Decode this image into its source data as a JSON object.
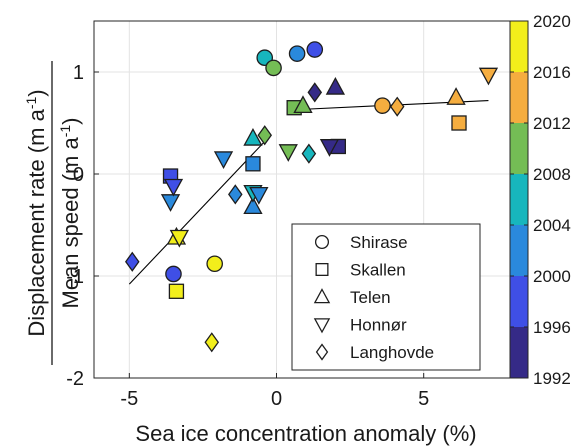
{
  "chart_data": {
    "type": "scatter",
    "xlabel": "Sea ice concentration anomaly (%)",
    "ylabel_top": "Displacement rate (m a-1)",
    "ylabel_bottom": "Mean speed (m a-1)",
    "ylabel_unit_base": "m a",
    "ylabel_unit_exp": "-1",
    "xlim": [
      -6.2,
      8.0
    ],
    "ylim": [
      -2,
      1.5
    ],
    "xticks": [
      -5,
      0,
      5
    ],
    "yticks": [
      -2,
      -1,
      0,
      1
    ],
    "grid": true,
    "legend_position": "bottom-right",
    "colorbar": {
      "ticks": [
        1992,
        1996,
        2000,
        2004,
        2008,
        2012,
        2016,
        2020
      ],
      "bands": [
        {
          "from": 1992,
          "to": 1996,
          "color": "#352a87"
        },
        {
          "from": 1996,
          "to": 2000,
          "color": "#3f4fe6"
        },
        {
          "from": 2000,
          "to": 2004,
          "color": "#2a89dc"
        },
        {
          "from": 2004,
          "to": 2008,
          "color": "#17b6bd"
        },
        {
          "from": 2008,
          "to": 2012,
          "color": "#74bd55"
        },
        {
          "from": 2012,
          "to": 2016,
          "color": "#f5ad3f"
        },
        {
          "from": 2016,
          "to": 2020,
          "color": "#f2ee1b"
        }
      ]
    },
    "fit_lines": [
      {
        "x": [
          -5.0,
          -0.2
        ],
        "y": [
          -1.08,
          0.38
        ]
      },
      {
        "x": [
          0.6,
          7.2
        ],
        "y": [
          0.63,
          0.72
        ]
      }
    ],
    "series": [
      {
        "name": "Shirase",
        "marker": "circle",
        "points": [
          {
            "x": -3.5,
            "y": -0.98,
            "color": "#3f4fe6"
          },
          {
            "x": -2.1,
            "y": -0.88,
            "color": "#f2ee1b"
          },
          {
            "x": -0.4,
            "y": 1.14,
            "color": "#17b6bd"
          },
          {
            "x": -0.1,
            "y": 1.04,
            "color": "#74bd55"
          },
          {
            "x": 0.7,
            "y": 1.18,
            "color": "#2a89dc"
          },
          {
            "x": 1.3,
            "y": 1.22,
            "color": "#3f4fe6"
          },
          {
            "x": 3.6,
            "y": 0.67,
            "color": "#f5ad3f"
          }
        ]
      },
      {
        "name": "Skallen",
        "marker": "square",
        "points": [
          {
            "x": -3.6,
            "y": -0.02,
            "color": "#3f4fe6"
          },
          {
            "x": -3.4,
            "y": -1.15,
            "color": "#f2ee1b"
          },
          {
            "x": -0.8,
            "y": 0.1,
            "color": "#2a89dc"
          },
          {
            "x": 0.6,
            "y": 0.65,
            "color": "#74bd55"
          },
          {
            "x": 2.1,
            "y": 0.27,
            "color": "#352a87"
          },
          {
            "x": 6.2,
            "y": 0.5,
            "color": "#f5ad3f"
          }
        ]
      },
      {
        "name": "Telen",
        "marker": "triangle-up",
        "points": [
          {
            "x": -3.4,
            "y": -0.62,
            "color": "#f2ee1b"
          },
          {
            "x": -0.8,
            "y": -0.32,
            "color": "#2a89dc"
          },
          {
            "x": -0.8,
            "y": 0.35,
            "color": "#17b6bd"
          },
          {
            "x": 0.9,
            "y": 0.67,
            "color": "#74bd55"
          },
          {
            "x": 2.0,
            "y": 0.85,
            "color": "#352a87"
          },
          {
            "x": 6.1,
            "y": 0.75,
            "color": "#f5ad3f"
          }
        ]
      },
      {
        "name": "Honnør",
        "marker": "triangle-down",
        "points": [
          {
            "x": -3.6,
            "y": -0.27,
            "color": "#2a89dc"
          },
          {
            "x": -3.5,
            "y": -0.12,
            "color": "#3f4fe6"
          },
          {
            "x": -3.3,
            "y": -0.62,
            "color": "#f2ee1b"
          },
          {
            "x": -1.8,
            "y": 0.15,
            "color": "#2a89dc"
          },
          {
            "x": -0.8,
            "y": -0.18,
            "color": "#17b6bd"
          },
          {
            "x": -0.6,
            "y": -0.2,
            "color": "#2a89dc"
          },
          {
            "x": 0.4,
            "y": 0.22,
            "color": "#74bd55"
          },
          {
            "x": 1.8,
            "y": 0.27,
            "color": "#352a87"
          },
          {
            "x": 7.2,
            "y": 0.97,
            "color": "#f5ad3f"
          }
        ]
      },
      {
        "name": "Langhovde",
        "marker": "diamond",
        "points": [
          {
            "x": -4.9,
            "y": -0.86,
            "color": "#3f4fe6"
          },
          {
            "x": -2.2,
            "y": -1.65,
            "color": "#f2ee1b"
          },
          {
            "x": -1.4,
            "y": -0.2,
            "color": "#2a89dc"
          },
          {
            "x": -0.4,
            "y": 0.38,
            "color": "#74bd55"
          },
          {
            "x": 1.1,
            "y": 0.2,
            "color": "#17b6bd"
          },
          {
            "x": 1.3,
            "y": 0.8,
            "color": "#352a87"
          },
          {
            "x": 4.1,
            "y": 0.66,
            "color": "#f5ad3f"
          }
        ]
      }
    ]
  }
}
